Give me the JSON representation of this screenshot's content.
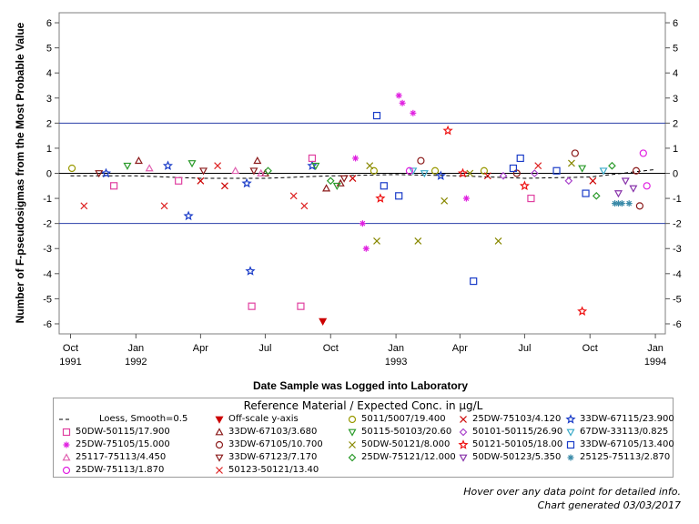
{
  "chart_data": {
    "type": "scatter",
    "title": "",
    "xlabel": "Date Sample was Logged into Laboratory",
    "ylabel": "Number of F-pseudosigmas from the Most Probable Value",
    "xlim": [
      "1991-09-15",
      "1994-01-15"
    ],
    "ylim": [
      -6.4,
      6.4
    ],
    "y_ticks": [
      6,
      5,
      4,
      3,
      2,
      1,
      0,
      -1,
      -2,
      -3,
      -4,
      -5,
      -6
    ],
    "y_tick_labels": [
      "6",
      "5",
      "4",
      "3",
      "2",
      "1",
      "0",
      "-1",
      "-2",
      "-3",
      "-4",
      "-5",
      "-6"
    ],
    "x_ticks": [
      {
        "date": "1991-10-01",
        "label": "Oct",
        "year": "1991"
      },
      {
        "date": "1992-01-01",
        "label": "Jan",
        "year": "1992"
      },
      {
        "date": "1992-04-01",
        "label": "Apr",
        "year": ""
      },
      {
        "date": "1992-07-01",
        "label": "Jul",
        "year": ""
      },
      {
        "date": "1992-10-01",
        "label": "Oct",
        "year": ""
      },
      {
        "date": "1993-01-01",
        "label": "Jan",
        "year": "1993"
      },
      {
        "date": "1993-04-01",
        "label": "Apr",
        "year": ""
      },
      {
        "date": "1993-07-01",
        "label": "Jul",
        "year": ""
      },
      {
        "date": "1993-10-01",
        "label": "Oct",
        "year": ""
      },
      {
        "date": "1994-01-01",
        "label": "Jan",
        "year": "1994"
      }
    ],
    "reference_lines": [
      2,
      -2
    ],
    "grid": false,
    "legend_title": "Reference Material / Expected Conc. in µg/L",
    "legend_position": "bottom",
    "loess": {
      "name": "Loess, Smooth=0.5",
      "x": [
        "1991-10-01",
        "1992-01-01",
        "1992-04-01",
        "1992-07-01",
        "1992-10-01",
        "1993-01-01",
        "1993-04-01",
        "1993-07-01",
        "1993-10-01",
        "1993-12-31"
      ],
      "y": [
        -0.1,
        -0.1,
        -0.2,
        -0.2,
        -0.1,
        -0.05,
        -0.1,
        -0.2,
        -0.15,
        0.15
      ]
    },
    "series": [
      {
        "name": "Off-scale y-axis",
        "marker": "tri-down-filled",
        "color": "#cc0000",
        "x": [
          "1992-09-20"
        ],
        "y": [
          -5.9
        ]
      },
      {
        "name": "5011/5007/19.400",
        "marker": "circle",
        "color": "#999900",
        "x": [
          "1991-10-03",
          "1992-12-01",
          "1993-02-25",
          "1993-05-05"
        ],
        "y": [
          0.2,
          0.1,
          0.1,
          0.1
        ]
      },
      {
        "name": "25DW-75103/4.120",
        "marker": "x",
        "color": "#cc0000",
        "x": [
          "1992-04-01",
          "1992-05-05",
          "1992-11-01",
          "1993-05-10",
          "1993-10-05"
        ],
        "y": [
          -0.3,
          -0.5,
          -0.2,
          -0.1,
          -0.3
        ]
      },
      {
        "name": "33DW-67115/23.900",
        "marker": "star",
        "color": "#1a3cc8",
        "x": [
          "1991-11-20",
          "1992-02-15",
          "1992-03-15",
          "1992-06-05",
          "1992-06-10",
          "1992-09-05",
          "1993-03-05"
        ],
        "y": [
          0.0,
          0.3,
          -1.7,
          -0.4,
          -3.9,
          0.3,
          -0.1
        ]
      },
      {
        "name": "50DW-50115/17.900",
        "marker": "square",
        "color": "#e040a0",
        "x": [
          "1991-12-01",
          "1992-03-01",
          "1992-06-12",
          "1992-08-20",
          "1992-09-05",
          "1993-07-10"
        ],
        "y": [
          -0.5,
          -0.3,
          -5.3,
          -5.3,
          0.6,
          -1.0
        ]
      },
      {
        "name": "33DW-67103/3.680",
        "marker": "triangle",
        "color": "#8b1a1a",
        "x": [
          "1992-01-05",
          "1992-06-20",
          "1992-07-01",
          "1992-09-25",
          "1992-10-15"
        ],
        "y": [
          0.5,
          0.5,
          0.0,
          -0.6,
          -0.4
        ]
      },
      {
        "name": "50115-50103/20.60",
        "marker": "tri-down",
        "color": "#2a9a2a",
        "x": [
          "1991-12-20",
          "1992-03-20",
          "1992-09-10",
          "1992-10-10",
          "1993-09-20"
        ],
        "y": [
          0.3,
          0.4,
          0.3,
          -0.5,
          0.2
        ]
      },
      {
        "name": "50101-50115/26.90",
        "marker": "diamond",
        "color": "#aa44cc",
        "x": [
          "1993-06-01",
          "1993-07-15",
          "1993-09-01"
        ],
        "y": [
          -0.1,
          0.0,
          -0.3
        ]
      },
      {
        "name": "67DW-33113/0.825",
        "marker": "tri-down",
        "color": "#3aaac8",
        "x": [
          "1993-01-25",
          "1993-02-10",
          "1993-10-20"
        ],
        "y": [
          0.1,
          0.0,
          0.1
        ]
      },
      {
        "name": "25DW-75105/15.000",
        "marker": "asterisk",
        "color": "#e020e0",
        "x": [
          "1992-11-05",
          "1992-11-15",
          "1992-11-20",
          "1993-01-05",
          "1993-01-10",
          "1993-01-25",
          "1993-04-10"
        ],
        "y": [
          0.6,
          -2.0,
          -3.0,
          3.1,
          2.8,
          2.4,
          -1.0
        ]
      },
      {
        "name": "33DW-67105/10.700",
        "marker": "circle",
        "color": "#8b1a1a",
        "x": [
          "1993-02-05",
          "1993-06-20",
          "1993-09-10",
          "1993-12-05",
          "1993-12-10"
        ],
        "y": [
          0.5,
          0.0,
          0.8,
          0.1,
          -1.3
        ]
      },
      {
        "name": "50DW-50121/8.000",
        "marker": "x",
        "color": "#888800",
        "x": [
          "1992-11-25",
          "1992-12-05",
          "1993-02-01",
          "1993-03-10",
          "1993-04-15",
          "1993-05-25",
          "1993-09-05"
        ],
        "y": [
          0.3,
          -2.7,
          -2.7,
          -1.1,
          0.0,
          -2.7,
          0.4
        ]
      },
      {
        "name": "50121-50105/18.00",
        "marker": "star",
        "color": "#ee1111",
        "x": [
          "1992-12-10",
          "1993-03-15",
          "1993-04-05",
          "1993-07-01",
          "1993-09-20"
        ],
        "y": [
          -1.0,
          1.7,
          0.0,
          -0.5,
          -5.5
        ]
      },
      {
        "name": "33DW-67105/13.400",
        "marker": "square",
        "color": "#1a3cc8",
        "x": [
          "1992-12-05",
          "1992-12-15",
          "1993-01-05",
          "1993-04-20",
          "1993-06-15",
          "1993-06-25",
          "1993-08-15",
          "1993-09-25"
        ],
        "y": [
          2.3,
          -0.5,
          -0.9,
          -4.3,
          0.2,
          0.6,
          0.1,
          -0.8
        ]
      },
      {
        "name": "25117-75113/4.450",
        "marker": "triangle",
        "color": "#e060b0",
        "x": [
          "1992-01-20",
          "1992-05-20",
          "1992-06-25"
        ],
        "y": [
          0.2,
          0.1,
          0.0
        ]
      },
      {
        "name": "33DW-67123/7.170",
        "marker": "tri-down",
        "color": "#8b1a1a",
        "x": [
          "1991-11-10",
          "1992-04-05",
          "1992-06-15",
          "1992-10-20"
        ],
        "y": [
          0.0,
          0.1,
          0.1,
          -0.2
        ]
      },
      {
        "name": "25DW-75121/12.000",
        "marker": "diamond",
        "color": "#2a9a2a",
        "x": [
          "1992-07-05",
          "1992-10-01",
          "1993-10-10",
          "1993-11-01"
        ],
        "y": [
          0.1,
          -0.3,
          -0.9,
          0.3
        ]
      },
      {
        "name": "50DW-50123/5.350",
        "marker": "tri-down",
        "color": "#8833aa",
        "x": [
          "1993-11-10",
          "1993-11-20",
          "1993-12-01"
        ],
        "y": [
          -0.8,
          -0.3,
          -0.6
        ]
      },
      {
        "name": "25125-75113/2.870",
        "marker": "asterisk",
        "color": "#3a8aa8",
        "x": [
          "1993-11-05",
          "1993-11-10",
          "1993-11-15",
          "1993-11-25"
        ],
        "y": [
          -1.2,
          -1.2,
          -1.2,
          -1.2
        ]
      },
      {
        "name": "25DW-75113/1.870",
        "marker": "circle",
        "color": "#e020e0",
        "x": [
          "1993-01-20",
          "1993-12-15",
          "1993-12-20"
        ],
        "y": [
          0.1,
          0.8,
          -0.5
        ]
      },
      {
        "name": "50123-50121/13.40",
        "marker": "x",
        "color": "#dd2222",
        "x": [
          "1991-10-20",
          "1992-02-10",
          "1992-04-25",
          "1992-08-10",
          "1992-08-25",
          "1993-07-20"
        ],
        "y": [
          -1.3,
          -1.3,
          0.3,
          -0.9,
          -1.3,
          0.3
        ]
      }
    ]
  },
  "legend": {
    "title": "Reference Material / Expected Conc. in µg/L",
    "rows": [
      [
        "Loess, Smooth=0.5",
        "Off-scale y-axis",
        "5011/5007/19.400",
        "25DW-75103/4.120",
        "33DW-67115/23.900"
      ],
      [
        "50DW-50115/17.900",
        "33DW-67103/3.680",
        "50115-50103/20.60",
        "50101-50115/26.90",
        "67DW-33113/0.825"
      ],
      [
        "25DW-75105/15.000",
        "33DW-67105/10.700",
        "50DW-50121/8.000",
        "50121-50105/18.00",
        "33DW-67105/13.400"
      ],
      [
        "25117-75113/4.450",
        "33DW-67123/7.170",
        "25DW-75121/12.000",
        "50DW-50123/5.350",
        "25125-75113/2.870"
      ],
      [
        "25DW-75113/1.870",
        "50123-50121/13.40"
      ]
    ]
  },
  "footer": {
    "hover_note": "Hover over any data point for detailed info.",
    "generated": "Chart generated 03/03/2017"
  }
}
